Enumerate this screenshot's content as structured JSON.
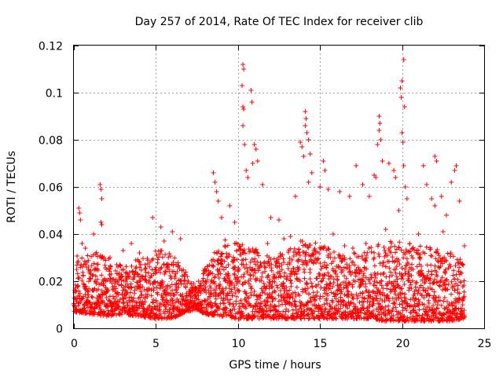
{
  "chart_data": {
    "type": "scatter",
    "title": "Day 257 of 2014, Rate Of TEC Index for receiver clib",
    "xlabel": "GPS time / hours",
    "ylabel": "ROTI / TECUs",
    "xlim": [
      0,
      25
    ],
    "ylim": [
      0,
      0.12
    ],
    "xticks": [
      0,
      5,
      10,
      15,
      20,
      25
    ],
    "xtick_labels": [
      "0",
      "5",
      "10",
      "15",
      "20",
      "25"
    ],
    "yticks": [
      0,
      0.02,
      0.04,
      0.06,
      0.08,
      0.1,
      0.12
    ],
    "ytick_labels": [
      "0",
      "0.02",
      "0.04",
      "0.06",
      "0.08",
      "0.1",
      "0.12"
    ],
    "grid": true,
    "marker": "+",
    "color": "#ff0000",
    "series": [
      {
        "name": "ROTI",
        "points": [
          [
            0.3,
            0.051
          ],
          [
            0.4,
            0.046
          ],
          [
            0.35,
            0.049
          ],
          [
            0.5,
            0.036
          ],
          [
            0.7,
            0.034
          ],
          [
            1.6,
            0.061
          ],
          [
            1.65,
            0.059
          ],
          [
            1.7,
            0.055
          ],
          [
            1.65,
            0.045
          ],
          [
            1.7,
            0.044
          ],
          [
            1.2,
            0.04
          ],
          [
            2.2,
            0.03
          ],
          [
            3.0,
            0.033
          ],
          [
            3.5,
            0.036
          ],
          [
            4.0,
            0.032
          ],
          [
            4.8,
            0.047
          ],
          [
            5.3,
            0.043
          ],
          [
            5.5,
            0.037
          ],
          [
            6.0,
            0.041
          ],
          [
            6.5,
            0.038
          ],
          [
            8.5,
            0.066
          ],
          [
            8.6,
            0.062
          ],
          [
            8.7,
            0.058
          ],
          [
            8.8,
            0.054
          ],
          [
            9.0,
            0.047
          ],
          [
            9.5,
            0.052
          ],
          [
            9.8,
            0.045
          ],
          [
            10.3,
            0.112
          ],
          [
            10.35,
            0.11
          ],
          [
            10.25,
            0.103
          ],
          [
            10.3,
            0.094
          ],
          [
            10.35,
            0.093
          ],
          [
            10.3,
            0.086
          ],
          [
            10.4,
            0.078
          ],
          [
            10.8,
            0.101
          ],
          [
            10.85,
            0.096
          ],
          [
            11.0,
            0.078
          ],
          [
            11.1,
            0.076
          ],
          [
            10.9,
            0.07
          ],
          [
            11.2,
            0.071
          ],
          [
            10.5,
            0.067
          ],
          [
            10.6,
            0.064
          ],
          [
            11.5,
            0.061
          ],
          [
            12.0,
            0.047
          ],
          [
            12.5,
            0.046
          ],
          [
            13.5,
            0.056
          ],
          [
            13.8,
            0.079
          ],
          [
            13.9,
            0.077
          ],
          [
            14.0,
            0.073
          ],
          [
            14.1,
            0.092
          ],
          [
            14.15,
            0.089
          ],
          [
            14.1,
            0.086
          ],
          [
            14.2,
            0.083
          ],
          [
            14.3,
            0.08
          ],
          [
            14.4,
            0.074
          ],
          [
            14.5,
            0.066
          ],
          [
            14.3,
            0.062
          ],
          [
            15.2,
            0.071
          ],
          [
            15.3,
            0.067
          ],
          [
            15.0,
            0.06
          ],
          [
            15.5,
            0.059
          ],
          [
            16.2,
            0.058
          ],
          [
            16.8,
            0.056
          ],
          [
            17.2,
            0.069
          ],
          [
            17.6,
            0.061
          ],
          [
            18.0,
            0.056
          ],
          [
            18.3,
            0.065
          ],
          [
            18.6,
            0.09
          ],
          [
            18.65,
            0.087
          ],
          [
            18.6,
            0.084
          ],
          [
            18.7,
            0.08
          ],
          [
            18.5,
            0.078
          ],
          [
            18.8,
            0.071
          ],
          [
            18.4,
            0.064
          ],
          [
            19.2,
            0.07
          ],
          [
            19.5,
            0.067
          ],
          [
            19.6,
            0.064
          ],
          [
            19.8,
            0.05
          ],
          [
            19.9,
            0.102
          ],
          [
            19.95,
            0.098
          ],
          [
            20.0,
            0.083
          ],
          [
            20.05,
            0.079
          ],
          [
            20.1,
            0.069
          ],
          [
            20.0,
            0.105
          ],
          [
            20.1,
            0.114
          ],
          [
            20.15,
            0.094
          ],
          [
            20.2,
            0.06
          ],
          [
            20.3,
            0.055
          ],
          [
            21.3,
            0.069
          ],
          [
            21.5,
            0.061
          ],
          [
            21.8,
            0.055
          ],
          [
            22.0,
            0.052
          ],
          [
            22.0,
            0.073
          ],
          [
            22.1,
            0.071
          ],
          [
            22.4,
            0.056
          ],
          [
            22.7,
            0.048
          ],
          [
            23.0,
            0.062
          ],
          [
            23.2,
            0.067
          ],
          [
            23.3,
            0.069
          ],
          [
            23.5,
            0.054
          ],
          [
            0.8,
            0.028
          ],
          [
            2.0,
            0.025
          ],
          [
            2.8,
            0.027
          ],
          [
            3.8,
            0.026
          ],
          [
            5.8,
            0.025
          ],
          [
            6.3,
            0.024
          ],
          [
            7.3,
            0.019
          ],
          [
            7.6,
            0.02
          ],
          [
            8.0,
            0.024
          ],
          [
            9.2,
            0.035
          ],
          [
            11.8,
            0.036
          ],
          [
            12.8,
            0.038
          ],
          [
            13.2,
            0.039
          ],
          [
            15.8,
            0.04
          ],
          [
            16.5,
            0.035
          ],
          [
            17.0,
            0.034
          ],
          [
            17.8,
            0.036
          ],
          [
            19.0,
            0.042
          ],
          [
            21.0,
            0.04
          ],
          [
            22.5,
            0.041
          ],
          [
            23.8,
            0.035
          ]
        ]
      }
    ],
    "band": {
      "description": "dense cluster of ROTI points",
      "profile": [
        {
          "x": 0.0,
          "low": 0.007,
          "high": 0.03
        },
        {
          "x": 1.0,
          "low": 0.006,
          "high": 0.034
        },
        {
          "x": 2.0,
          "low": 0.005,
          "high": 0.03
        },
        {
          "x": 3.0,
          "low": 0.006,
          "high": 0.026
        },
        {
          "x": 4.0,
          "low": 0.005,
          "high": 0.03
        },
        {
          "x": 5.0,
          "low": 0.004,
          "high": 0.035
        },
        {
          "x": 6.0,
          "low": 0.004,
          "high": 0.033
        },
        {
          "x": 6.8,
          "low": 0.007,
          "high": 0.024
        },
        {
          "x": 7.5,
          "low": 0.008,
          "high": 0.018
        },
        {
          "x": 8.0,
          "low": 0.006,
          "high": 0.026
        },
        {
          "x": 9.0,
          "low": 0.005,
          "high": 0.038
        },
        {
          "x": 10.0,
          "low": 0.004,
          "high": 0.036
        },
        {
          "x": 11.0,
          "low": 0.004,
          "high": 0.034
        },
        {
          "x": 12.0,
          "low": 0.004,
          "high": 0.031
        },
        {
          "x": 13.0,
          "low": 0.004,
          "high": 0.033
        },
        {
          "x": 14.0,
          "low": 0.004,
          "high": 0.038
        },
        {
          "x": 15.0,
          "low": 0.004,
          "high": 0.036
        },
        {
          "x": 16.0,
          "low": 0.004,
          "high": 0.032
        },
        {
          "x": 17.0,
          "low": 0.004,
          "high": 0.032
        },
        {
          "x": 18.0,
          "low": 0.004,
          "high": 0.034
        },
        {
          "x": 19.0,
          "low": 0.003,
          "high": 0.038
        },
        {
          "x": 20.0,
          "low": 0.003,
          "high": 0.037
        },
        {
          "x": 21.0,
          "low": 0.003,
          "high": 0.035
        },
        {
          "x": 22.0,
          "low": 0.003,
          "high": 0.034
        },
        {
          "x": 23.0,
          "low": 0.003,
          "high": 0.032
        },
        {
          "x": 23.8,
          "low": 0.004,
          "high": 0.028
        }
      ],
      "x_step": 0.04,
      "points_per_step": 5
    }
  }
}
